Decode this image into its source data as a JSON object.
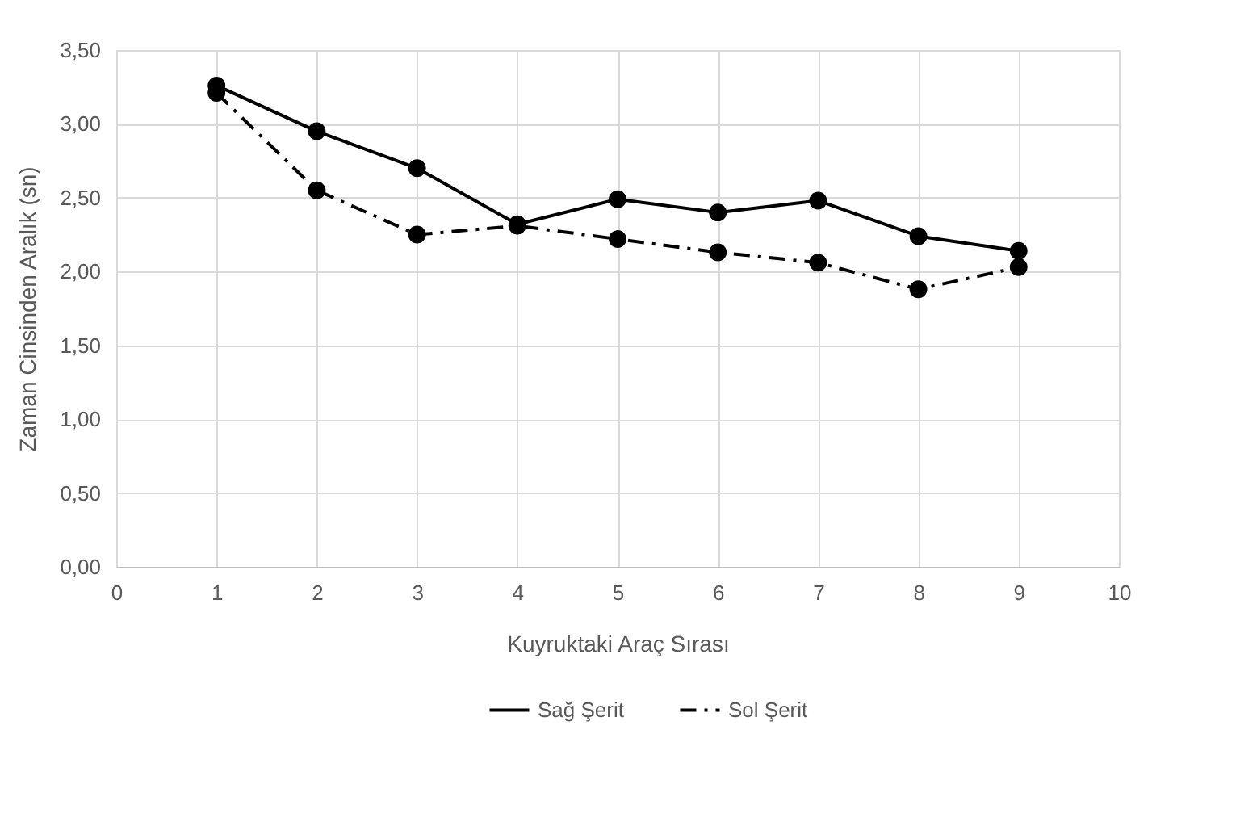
{
  "chart_data": {
    "type": "line",
    "xlabel": "Kuyruktaki Araç Sırası",
    "ylabel": "Zaman Cinsinden Aralık (sn)",
    "x": [
      1,
      2,
      3,
      4,
      5,
      6,
      7,
      8,
      9
    ],
    "series": [
      {
        "name": "Sağ Şerit",
        "color": "#000000",
        "line_style": "solid",
        "values": [
          3.26,
          2.95,
          2.7,
          2.32,
          2.49,
          2.4,
          2.48,
          2.24,
          2.14
        ]
      },
      {
        "name": "Sol Şerit",
        "color": "#000000",
        "line_style": "dashed",
        "values": [
          3.21,
          2.55,
          2.25,
          2.31,
          2.22,
          2.13,
          2.06,
          1.88,
          2.03
        ]
      }
    ],
    "xlim": [
      0,
      10
    ],
    "xticks": [
      0,
      1,
      2,
      3,
      4,
      5,
      6,
      7,
      8,
      9,
      10
    ],
    "ylim": [
      0,
      3.5
    ],
    "yticks": [
      {
        "value": 0,
        "label": "0,00"
      },
      {
        "value": 0.5,
        "label": "0,50"
      },
      {
        "value": 1,
        "label": "1,00"
      },
      {
        "value": 1.5,
        "label": "1,50"
      },
      {
        "value": 2,
        "label": "2,00"
      },
      {
        "value": 2.5,
        "label": "2,50"
      },
      {
        "value": 3,
        "label": "3,00"
      },
      {
        "value": 3.5,
        "label": "3,50"
      }
    ],
    "grid": true,
    "legend": "bottom",
    "marker": "circle"
  }
}
